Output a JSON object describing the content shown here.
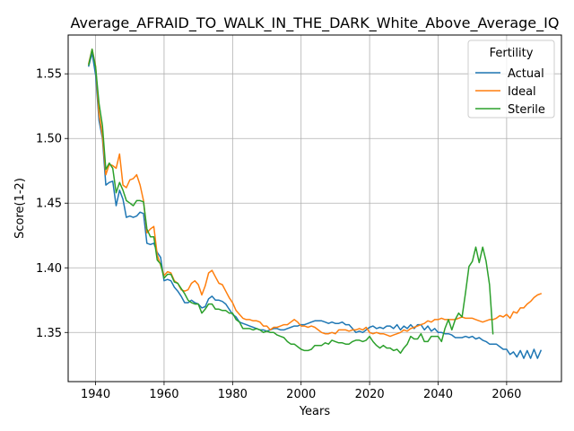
{
  "chart_data": {
    "type": "line",
    "title": "Average_AFRAID_TO_WALK_IN_THE_DARK_White_Above_Average_IQ",
    "xlabel": "Years",
    "ylabel": "Score(1-2)",
    "xlim": [
      1932,
      2076
    ],
    "ylim": [
      1.312,
      1.58
    ],
    "xticks": [
      1940,
      1960,
      1980,
      2000,
      2020,
      2040,
      2060
    ],
    "yticks": [
      1.35,
      1.4,
      1.45,
      1.5,
      1.55
    ],
    "grid": true,
    "legend": {
      "title": "Fertility",
      "position": "top-right"
    },
    "colors": {
      "Actual": "#1f77b4",
      "Ideal": "#ff7f0e",
      "Sterile": "#2ca02c"
    },
    "series": [
      {
        "name": "Actual",
        "x": [
          1938,
          1939,
          1940,
          1941,
          1942,
          1943,
          1944,
          1945,
          1946,
          1947,
          1948,
          1949,
          1950,
          1951,
          1952,
          1953,
          1954,
          1955,
          1956,
          1957,
          1958,
          1959,
          1960,
          1961,
          1962,
          1963,
          1964,
          1965,
          1966,
          1967,
          1968,
          1969,
          1970,
          1971,
          1972,
          1973,
          1974,
          1975,
          1976,
          1977,
          1978,
          1979,
          1980,
          1981,
          1982,
          1983,
          1984,
          1985,
          1986,
          1987,
          1988,
          1989,
          1990,
          1991,
          1992,
          1993,
          1994,
          1995,
          1996,
          1997,
          1998,
          1999,
          2000,
          2001,
          2002,
          2003,
          2004,
          2005,
          2006,
          2007,
          2008,
          2009,
          2010,
          2011,
          2012,
          2013,
          2014,
          2015,
          2016,
          2017,
          2018,
          2019,
          2020,
          2021,
          2022,
          2023,
          2024,
          2025,
          2026,
          2027,
          2028,
          2029,
          2030,
          2031,
          2032,
          2033,
          2034,
          2035,
          2036,
          2037,
          2038,
          2039,
          2040,
          2041,
          2042,
          2043,
          2044,
          2045,
          2046,
          2047,
          2048,
          2049,
          2050,
          2051,
          2052,
          2053,
          2054,
          2055,
          2056,
          2057,
          2058,
          2059,
          2060,
          2061,
          2062,
          2063,
          2064,
          2065,
          2066,
          2067,
          2068,
          2069,
          2070
        ],
        "y": [
          1.556,
          1.566,
          1.549,
          1.514,
          1.5,
          1.464,
          1.466,
          1.467,
          1.448,
          1.46,
          1.453,
          1.439,
          1.44,
          1.439,
          1.44,
          1.443,
          1.442,
          1.419,
          1.418,
          1.419,
          1.412,
          1.408,
          1.39,
          1.391,
          1.39,
          1.385,
          1.382,
          1.378,
          1.373,
          1.373,
          1.375,
          1.373,
          1.372,
          1.369,
          1.37,
          1.376,
          1.378,
          1.375,
          1.375,
          1.374,
          1.372,
          1.368,
          1.364,
          1.362,
          1.358,
          1.357,
          1.356,
          1.355,
          1.354,
          1.353,
          1.352,
          1.352,
          1.351,
          1.352,
          1.353,
          1.353,
          1.352,
          1.352,
          1.353,
          1.354,
          1.355,
          1.355,
          1.356,
          1.356,
          1.357,
          1.358,
          1.359,
          1.359,
          1.359,
          1.358,
          1.357,
          1.358,
          1.357,
          1.357,
          1.358,
          1.356,
          1.356,
          1.353,
          1.35,
          1.351,
          1.35,
          1.352,
          1.354,
          1.355,
          1.353,
          1.354,
          1.353,
          1.355,
          1.355,
          1.353,
          1.356,
          1.352,
          1.355,
          1.353,
          1.356,
          1.353,
          1.356,
          1.356,
          1.352,
          1.355,
          1.351,
          1.353,
          1.35,
          1.35,
          1.349,
          1.349,
          1.348,
          1.346,
          1.346,
          1.346,
          1.347,
          1.346,
          1.347,
          1.345,
          1.346,
          1.344,
          1.343,
          1.341,
          1.341,
          1.341,
          1.339,
          1.337,
          1.337,
          1.333,
          1.335,
          1.331,
          1.336,
          1.33,
          1.336,
          1.33,
          1.337,
          1.33,
          1.336
        ]
      },
      {
        "name": "Ideal",
        "x": [
          1938,
          1939,
          1940,
          1941,
          1942,
          1943,
          1944,
          1945,
          1946,
          1947,
          1948,
          1949,
          1950,
          1951,
          1952,
          1953,
          1954,
          1955,
          1956,
          1957,
          1958,
          1959,
          1960,
          1961,
          1962,
          1963,
          1964,
          1965,
          1966,
          1967,
          1968,
          1969,
          1970,
          1971,
          1972,
          1973,
          1974,
          1975,
          1976,
          1977,
          1978,
          1979,
          1980,
          1981,
          1982,
          1983,
          1984,
          1985,
          1986,
          1987,
          1988,
          1989,
          1990,
          1991,
          1992,
          1993,
          1994,
          1995,
          1996,
          1997,
          1998,
          1999,
          2000,
          2001,
          2002,
          2003,
          2004,
          2005,
          2006,
          2007,
          2008,
          2009,
          2010,
          2011,
          2012,
          2013,
          2014,
          2015,
          2016,
          2017,
          2018,
          2019,
          2020,
          2021,
          2022,
          2023,
          2024,
          2025,
          2026,
          2027,
          2028,
          2029,
          2030,
          2031,
          2032,
          2033,
          2034,
          2035,
          2036,
          2037,
          2038,
          2039,
          2040,
          2041,
          2042,
          2043,
          2044,
          2045,
          2046,
          2047,
          2048,
          2049,
          2050,
          2051,
          2052,
          2053,
          2054,
          2055,
          2056,
          2057,
          2058,
          2059,
          2060,
          2061,
          2062,
          2063,
          2064,
          2065,
          2066,
          2067,
          2068,
          2069,
          2070
        ],
        "y": [
          1.558,
          1.569,
          1.556,
          1.519,
          1.502,
          1.472,
          1.48,
          1.479,
          1.477,
          1.488,
          1.464,
          1.462,
          1.468,
          1.469,
          1.472,
          1.464,
          1.452,
          1.427,
          1.43,
          1.432,
          1.41,
          1.402,
          1.394,
          1.397,
          1.396,
          1.39,
          1.388,
          1.383,
          1.382,
          1.383,
          1.388,
          1.39,
          1.387,
          1.379,
          1.386,
          1.396,
          1.398,
          1.393,
          1.388,
          1.387,
          1.382,
          1.377,
          1.373,
          1.367,
          1.364,
          1.361,
          1.36,
          1.36,
          1.359,
          1.359,
          1.358,
          1.355,
          1.355,
          1.352,
          1.354,
          1.354,
          1.355,
          1.356,
          1.356,
          1.358,
          1.36,
          1.358,
          1.355,
          1.355,
          1.354,
          1.355,
          1.354,
          1.352,
          1.35,
          1.349,
          1.349,
          1.35,
          1.349,
          1.352,
          1.352,
          1.352,
          1.351,
          1.352,
          1.352,
          1.353,
          1.352,
          1.354,
          1.35,
          1.349,
          1.35,
          1.349,
          1.349,
          1.348,
          1.347,
          1.348,
          1.349,
          1.35,
          1.352,
          1.351,
          1.353,
          1.354,
          1.355,
          1.356,
          1.357,
          1.359,
          1.358,
          1.36,
          1.36,
          1.361,
          1.36,
          1.36,
          1.36,
          1.36,
          1.361,
          1.362,
          1.361,
          1.361,
          1.361,
          1.36,
          1.359,
          1.358,
          1.359,
          1.36,
          1.36,
          1.361,
          1.363,
          1.362,
          1.364,
          1.361,
          1.366,
          1.365,
          1.369,
          1.369,
          1.372,
          1.374,
          1.377,
          1.379,
          1.38
        ]
      },
      {
        "name": "Sterile",
        "x": [
          1938,
          1939,
          1940,
          1941,
          1942,
          1943,
          1944,
          1945,
          1946,
          1947,
          1948,
          1949,
          1950,
          1951,
          1952,
          1953,
          1954,
          1955,
          1956,
          1957,
          1958,
          1959,
          1960,
          1961,
          1962,
          1963,
          1964,
          1965,
          1966,
          1967,
          1968,
          1969,
          1970,
          1971,
          1972,
          1973,
          1974,
          1975,
          1976,
          1977,
          1978,
          1979,
          1980,
          1981,
          1982,
          1983,
          1984,
          1985,
          1986,
          1987,
          1988,
          1989,
          1990,
          1991,
          1992,
          1993,
          1994,
          1995,
          1996,
          1997,
          1998,
          1999,
          2000,
          2001,
          2002,
          2003,
          2004,
          2005,
          2006,
          2007,
          2008,
          2009,
          2010,
          2011,
          2012,
          2013,
          2014,
          2015,
          2016,
          2017,
          2018,
          2019,
          2020,
          2021,
          2022,
          2023,
          2024,
          2025,
          2026,
          2027,
          2028,
          2029,
          2030,
          2031,
          2032,
          2033,
          2034,
          2035,
          2036,
          2037,
          2038,
          2039,
          2040,
          2041,
          2042,
          2043,
          2044,
          2045,
          2046,
          2047,
          2048,
          2049,
          2050,
          2051,
          2052,
          2053,
          2054,
          2055,
          2056
        ],
        "y": [
          1.557,
          1.569,
          1.555,
          1.527,
          1.51,
          1.476,
          1.481,
          1.477,
          1.458,
          1.466,
          1.46,
          1.452,
          1.45,
          1.448,
          1.452,
          1.452,
          1.451,
          1.43,
          1.424,
          1.424,
          1.406,
          1.403,
          1.392,
          1.395,
          1.395,
          1.389,
          1.388,
          1.384,
          1.38,
          1.375,
          1.373,
          1.372,
          1.372,
          1.365,
          1.368,
          1.372,
          1.372,
          1.368,
          1.368,
          1.367,
          1.367,
          1.365,
          1.365,
          1.36,
          1.358,
          1.353,
          1.353,
          1.353,
          1.352,
          1.353,
          1.352,
          1.35,
          1.351,
          1.35,
          1.35,
          1.348,
          1.347,
          1.346,
          1.343,
          1.341,
          1.341,
          1.339,
          1.337,
          1.336,
          1.336,
          1.337,
          1.34,
          1.34,
          1.34,
          1.342,
          1.341,
          1.344,
          1.343,
          1.342,
          1.342,
          1.341,
          1.341,
          1.343,
          1.344,
          1.344,
          1.343,
          1.344,
          1.347,
          1.343,
          1.34,
          1.338,
          1.34,
          1.338,
          1.338,
          1.336,
          1.337,
          1.334,
          1.338,
          1.341,
          1.347,
          1.345,
          1.345,
          1.349,
          1.343,
          1.343,
          1.347,
          1.347,
          1.347,
          1.343,
          1.353,
          1.36,
          1.352,
          1.36,
          1.365,
          1.362,
          1.381,
          1.401,
          1.405,
          1.416,
          1.404,
          1.416,
          1.405,
          1.387,
          1.349
        ]
      }
    ]
  }
}
